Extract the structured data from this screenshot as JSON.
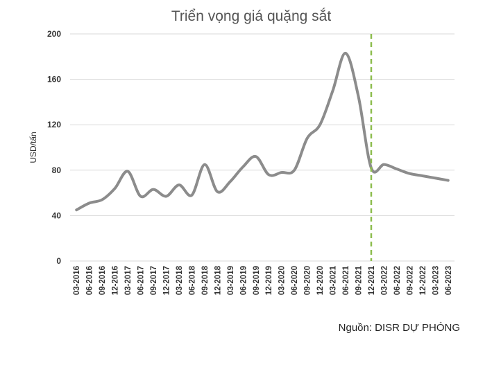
{
  "chart_data": {
    "type": "line",
    "title": "Triển vọng giá quặng sắt",
    "y_label": "USD/tấn",
    "source": "Nguồn: DISR DỰ PHÓNG",
    "categories": [
      "03-2016",
      "06-2016",
      "09-2016",
      "12-2016",
      "03-2017",
      "06-2017",
      "09-2017",
      "12-2017",
      "03-2018",
      "06-2018",
      "09-2018",
      "12-2018",
      "03-2019",
      "06-2019",
      "09-2019",
      "12-2019",
      "03-2020",
      "06-2020",
      "09-2020",
      "12-2020",
      "03-2021",
      "06-2021",
      "09-2021",
      "12-2021",
      "03-2022",
      "06-2022",
      "09-2022",
      "12-2022",
      "03-2023",
      "06-2023"
    ],
    "values": [
      45,
      51,
      54,
      64,
      79,
      57,
      63,
      57,
      67,
      58,
      85,
      61,
      70,
      83,
      92,
      76,
      78,
      80,
      108,
      120,
      150,
      183,
      145,
      82,
      85,
      81,
      77,
      75,
      73,
      71
    ],
    "color": "#8c8c8c",
    "forecast_line_at": "12-2021",
    "forecast_line_color": "#8dbd4e",
    "ylim": [
      0,
      200
    ],
    "yticks": [
      0,
      40,
      80,
      120,
      160,
      200
    ],
    "grid": true
  }
}
